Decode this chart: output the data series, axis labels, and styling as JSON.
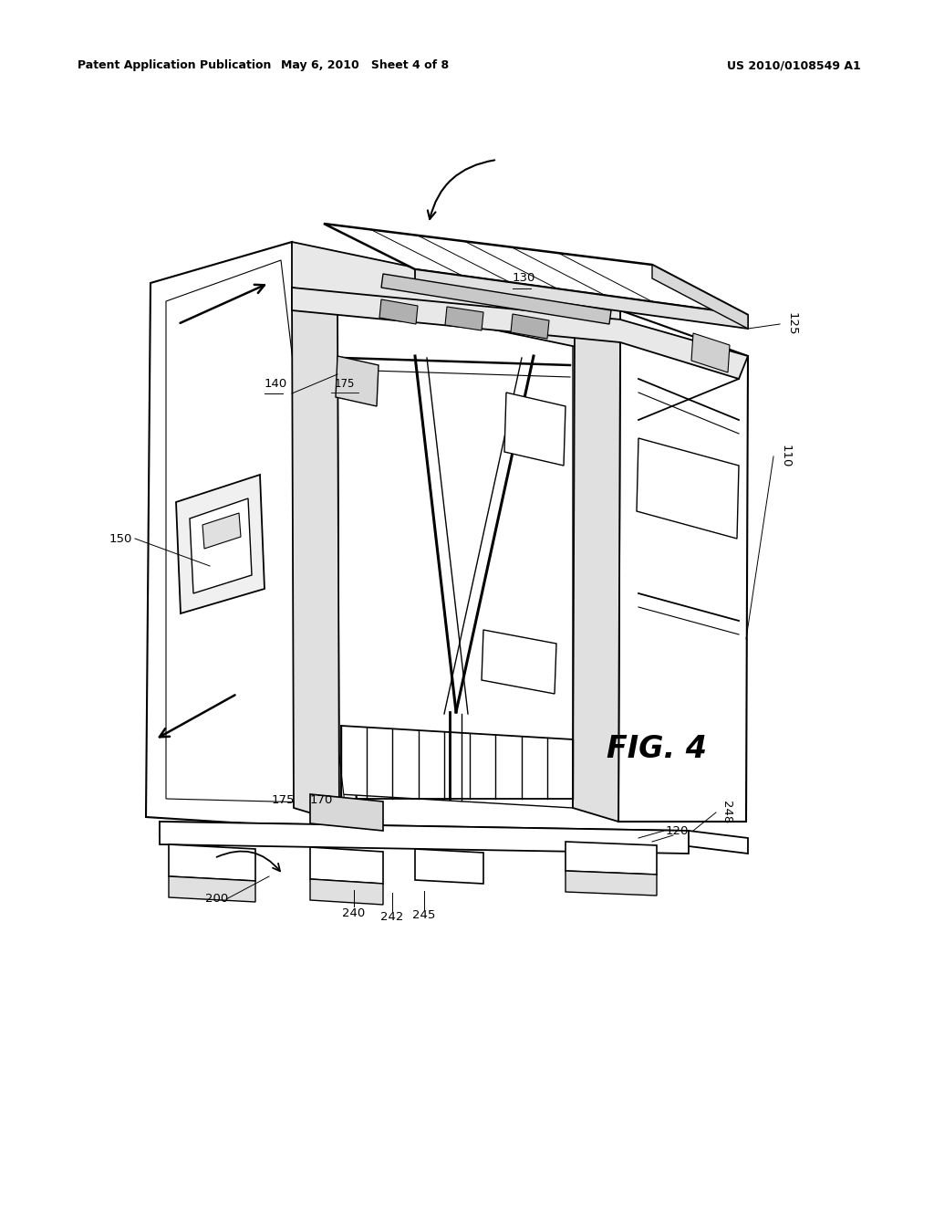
{
  "header_left": "Patent Application Publication",
  "header_mid": "May 6, 2010   Sheet 4 of 8",
  "header_right": "US 2010/0108549 A1",
  "fig_label": "FIG. 4",
  "background_color": "#ffffff",
  "line_color": "#000000",
  "lw_main": 1.5,
  "lw_thin": 0.8,
  "lw_thick": 2.0
}
